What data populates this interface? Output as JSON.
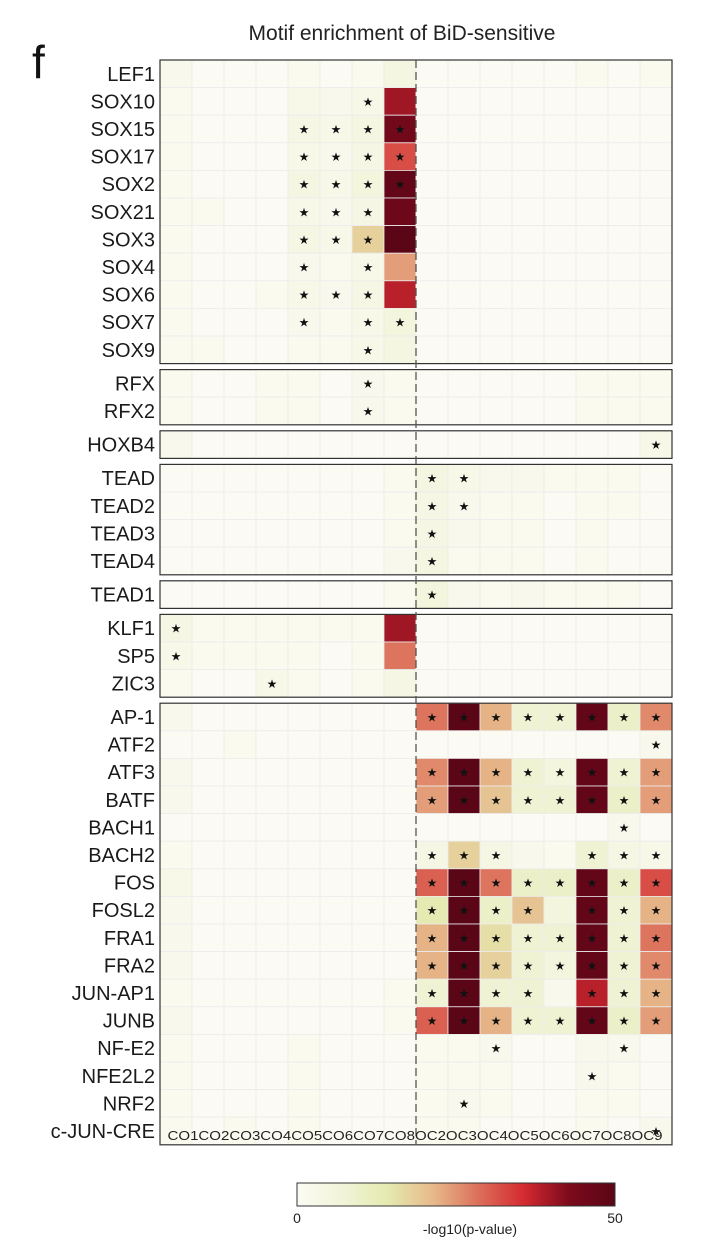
{
  "figure": {
    "panel_label": "f",
    "title": "Motif enrichment of BiD-sensitive"
  },
  "chart_data": {
    "type": "heatmap",
    "title": "Motif enrichment of BiD-sensitive",
    "columns": [
      "CO1",
      "CO2",
      "CO3",
      "CO4",
      "CO5",
      "CO6",
      "CO7",
      "CO8",
      "OC2",
      "OC3",
      "OC4",
      "OC5",
      "OC6",
      "OC7",
      "OC8",
      "OC9"
    ],
    "column_axis_label": "CO1CO2CO3CO4CO5CO6CO7CO8OC2OC3OC4OC5OC6OC7OC8OC9",
    "column_split_after": "CO8",
    "rows": [
      "LEF1",
      "SOX10",
      "SOX15",
      "SOX17",
      "SOX2",
      "SOX21",
      "SOX3",
      "SOX4",
      "SOX6",
      "SOX7",
      "SOX9",
      "RFX",
      "RFX2",
      "HOXB4",
      "TEAD",
      "TEAD2",
      "TEAD3",
      "TEAD4",
      "TEAD1",
      "KLF1",
      "SP5",
      "ZIC3",
      "AP-1",
      "ATF2",
      "ATF3",
      "BATF",
      "BACH1",
      "BACH2",
      "FOS",
      "FOSL2",
      "FRA1",
      "FRA2",
      "JUN-AP1",
      "JUNB",
      "NF-E2",
      "NFE2L2",
      "NRF2",
      "c-JUN-CRE"
    ],
    "row_groups": [
      {
        "rows": [
          "LEF1",
          "SOX10",
          "SOX15",
          "SOX17",
          "SOX2",
          "SOX21",
          "SOX3",
          "SOX4",
          "SOX6",
          "SOX7",
          "SOX9"
        ]
      },
      {
        "rows": [
          "RFX",
          "RFX2"
        ]
      },
      {
        "rows": [
          "HOXB4"
        ]
      },
      {
        "rows": [
          "TEAD",
          "TEAD2",
          "TEAD3",
          "TEAD4"
        ]
      },
      {
        "rows": [
          "TEAD1"
        ]
      },
      {
        "rows": [
          "KLF1",
          "SP5",
          "ZIC3"
        ]
      },
      {
        "rows": [
          "AP-1",
          "ATF2",
          "ATF3",
          "BATF",
          "BACH1",
          "BACH2",
          "FOS",
          "FOSL2",
          "FRA1",
          "FRA2",
          "JUN-AP1",
          "JUNB",
          "NF-E2",
          "NFE2L2",
          "NRF2",
          "c-JUN-CRE"
        ]
      }
    ],
    "values": [
      [
        2,
        0,
        0,
        0,
        1,
        0,
        1,
        5,
        0,
        0,
        0,
        0,
        0,
        1,
        0,
        1
      ],
      [
        1,
        0,
        0,
        0,
        3,
        2,
        3,
        40,
        0,
        0,
        0,
        0,
        0,
        0,
        0,
        0
      ],
      [
        1,
        0,
        0,
        0,
        4,
        3,
        5,
        45,
        0,
        0,
        0,
        0,
        0,
        0,
        0,
        0
      ],
      [
        1,
        0,
        0,
        0,
        3,
        2,
        4,
        32,
        0,
        0,
        0,
        0,
        0,
        0,
        0,
        0
      ],
      [
        1,
        0,
        0,
        0,
        5,
        3,
        6,
        48,
        0,
        0,
        0,
        0,
        0,
        0,
        0,
        0
      ],
      [
        1,
        1,
        0,
        0,
        3,
        2,
        4,
        46,
        0,
        0,
        0,
        0,
        0,
        0,
        0,
        0
      ],
      [
        1,
        0,
        0,
        0,
        4,
        3,
        18,
        50,
        0,
        0,
        0,
        0,
        0,
        0,
        0,
        0
      ],
      [
        1,
        0,
        0,
        0,
        2,
        1,
        3,
        24,
        0,
        0,
        0,
        0,
        0,
        0,
        0,
        0
      ],
      [
        1,
        0,
        0,
        1,
        3,
        2,
        4,
        38,
        0,
        0,
        0,
        0,
        0,
        0,
        0,
        0
      ],
      [
        1,
        0,
        0,
        0,
        2,
        1,
        3,
        6,
        0,
        0,
        0,
        0,
        0,
        0,
        0,
        0
      ],
      [
        1,
        1,
        0,
        0,
        1,
        1,
        3,
        5,
        0,
        0,
        0,
        0,
        0,
        0,
        0,
        0
      ],
      [
        1,
        0,
        0,
        1,
        1,
        0,
        2,
        1,
        0,
        0,
        0,
        0,
        0,
        1,
        1,
        1
      ],
      [
        1,
        0,
        0,
        1,
        1,
        0,
        2,
        1,
        0,
        0,
        0,
        0,
        0,
        1,
        1,
        1
      ],
      [
        2,
        0,
        0,
        0,
        0,
        0,
        0,
        0,
        0,
        0,
        0,
        0,
        0,
        0,
        0,
        3
      ],
      [
        0,
        0,
        0,
        0,
        0,
        0,
        0,
        1,
        5,
        3,
        2,
        2,
        1,
        1,
        1,
        0
      ],
      [
        0,
        0,
        0,
        0,
        0,
        0,
        0,
        1,
        4,
        2,
        1,
        1,
        0,
        1,
        1,
        0
      ],
      [
        0,
        0,
        0,
        0,
        0,
        0,
        0,
        1,
        4,
        2,
        1,
        1,
        0,
        1,
        0,
        0
      ],
      [
        0,
        0,
        0,
        0,
        0,
        0,
        0,
        2,
        5,
        1,
        1,
        1,
        0,
        1,
        0,
        0
      ],
      [
        0,
        0,
        0,
        0,
        0,
        0,
        0,
        1,
        6,
        2,
        1,
        2,
        1,
        1,
        1,
        0
      ],
      [
        4,
        1,
        1,
        1,
        1,
        1,
        1,
        40,
        0,
        0,
        0,
        0,
        0,
        0,
        0,
        0
      ],
      [
        3,
        1,
        1,
        1,
        1,
        0,
        1,
        28,
        0,
        0,
        0,
        0,
        0,
        0,
        0,
        0
      ],
      [
        1,
        0,
        0,
        3,
        1,
        0,
        1,
        4,
        0,
        0,
        0,
        0,
        0,
        0,
        0,
        0
      ],
      [
        2,
        0,
        0,
        0,
        0,
        0,
        0,
        0,
        28,
        50,
        22,
        8,
        8,
        48,
        10,
        26
      ],
      [
        0,
        0,
        1,
        0,
        0,
        0,
        0,
        0,
        0,
        0,
        0,
        0,
        0,
        0,
        0,
        2
      ],
      [
        2,
        0,
        0,
        0,
        0,
        0,
        0,
        0,
        26,
        50,
        22,
        8,
        6,
        48,
        8,
        24
      ],
      [
        2,
        0,
        0,
        0,
        0,
        0,
        0,
        0,
        24,
        50,
        20,
        8,
        8,
        48,
        10,
        24
      ],
      [
        0,
        0,
        0,
        0,
        0,
        0,
        0,
        0,
        0,
        0,
        0,
        0,
        0,
        0,
        2,
        0
      ],
      [
        1,
        0,
        0,
        0,
        0,
        0,
        0,
        0,
        4,
        18,
        4,
        2,
        1,
        8,
        4,
        3
      ],
      [
        3,
        0,
        0,
        0,
        0,
        0,
        0,
        0,
        30,
        50,
        28,
        10,
        10,
        48,
        10,
        32
      ],
      [
        2,
        0,
        0,
        0,
        0,
        0,
        0,
        0,
        14,
        50,
        10,
        20,
        6,
        48,
        8,
        22
      ],
      [
        2,
        0,
        0,
        0,
        0,
        0,
        0,
        0,
        22,
        50,
        16,
        8,
        8,
        48,
        8,
        28
      ],
      [
        2,
        0,
        0,
        0,
        0,
        0,
        0,
        0,
        22,
        50,
        18,
        8,
        6,
        48,
        8,
        26
      ],
      [
        1,
        0,
        0,
        0,
        0,
        0,
        0,
        1,
        8,
        50,
        8,
        8,
        2,
        38,
        8,
        22
      ],
      [
        2,
        0,
        0,
        0,
        0,
        0,
        0,
        1,
        30,
        50,
        22,
        8,
        8,
        48,
        10,
        24
      ],
      [
        1,
        0,
        0,
        0,
        1,
        0,
        0,
        0,
        1,
        1,
        2,
        0,
        0,
        2,
        2,
        0
      ],
      [
        1,
        0,
        0,
        0,
        1,
        0,
        0,
        0,
        1,
        1,
        1,
        0,
        0,
        2,
        1,
        0
      ],
      [
        1,
        0,
        0,
        0,
        1,
        0,
        0,
        0,
        1,
        2,
        1,
        0,
        0,
        1,
        1,
        0
      ],
      [
        1,
        0,
        1,
        0,
        1,
        0,
        0,
        0,
        1,
        1,
        0,
        0,
        0,
        1,
        0,
        2
      ]
    ],
    "significant": [
      [],
      [
        "CO7"
      ],
      [
        "CO5",
        "CO6",
        "CO7",
        "CO8"
      ],
      [
        "CO5",
        "CO6",
        "CO7",
        "CO8"
      ],
      [
        "CO5",
        "CO6",
        "CO7",
        "CO8"
      ],
      [
        "CO5",
        "CO6",
        "CO7"
      ],
      [
        "CO5",
        "CO6",
        "CO7"
      ],
      [
        "CO5",
        "CO7"
      ],
      [
        "CO5",
        "CO6",
        "CO7"
      ],
      [
        "CO5",
        "CO7",
        "CO8"
      ],
      [
        "CO7"
      ],
      [
        "CO7"
      ],
      [
        "CO7"
      ],
      [
        "OC9"
      ],
      [
        "OC2",
        "OC3"
      ],
      [
        "OC2",
        "OC3"
      ],
      [
        "OC2"
      ],
      [
        "OC2"
      ],
      [
        "OC2"
      ],
      [
        "CO1"
      ],
      [
        "CO1"
      ],
      [
        "CO4"
      ],
      [
        "OC2",
        "OC3",
        "OC4",
        "OC5",
        "OC6",
        "OC7",
        "OC8",
        "OC9"
      ],
      [
        "OC9"
      ],
      [
        "OC2",
        "OC3",
        "OC4",
        "OC5",
        "OC6",
        "OC7",
        "OC8",
        "OC9"
      ],
      [
        "OC2",
        "OC3",
        "OC4",
        "OC5",
        "OC6",
        "OC7",
        "OC8",
        "OC9"
      ],
      [
        "OC8"
      ],
      [
        "OC2",
        "OC3",
        "OC4",
        "OC7",
        "OC8",
        "OC9"
      ],
      [
        "OC2",
        "OC3",
        "OC4",
        "OC5",
        "OC6",
        "OC7",
        "OC8",
        "OC9"
      ],
      [
        "OC2",
        "OC3",
        "OC4",
        "OC5",
        "OC7",
        "OC8",
        "OC9"
      ],
      [
        "OC2",
        "OC3",
        "OC4",
        "OC5",
        "OC6",
        "OC7",
        "OC8",
        "OC9"
      ],
      [
        "OC2",
        "OC3",
        "OC4",
        "OC5",
        "OC6",
        "OC7",
        "OC8",
        "OC9"
      ],
      [
        "OC2",
        "OC3",
        "OC4",
        "OC5",
        "OC7",
        "OC8",
        "OC9"
      ],
      [
        "OC2",
        "OC3",
        "OC4",
        "OC5",
        "OC6",
        "OC7",
        "OC8",
        "OC9"
      ],
      [
        "OC4",
        "OC8"
      ],
      [
        "OC7"
      ],
      [
        "OC3"
      ],
      [
        "OC9"
      ]
    ],
    "significance_mark": "★",
    "colorbar": {
      "min": 0,
      "max": 50,
      "min_label": "0",
      "max_label": "50",
      "label": "-log10(p-value)",
      "colors": [
        "#fbfbf3",
        "#f1f4d9",
        "#e4eab0",
        "#e7b98a",
        "#dc6f5a",
        "#d42a31",
        "#7b0a1c",
        "#5a0616"
      ]
    },
    "grid": true,
    "legend_position": "bottom-center"
  }
}
